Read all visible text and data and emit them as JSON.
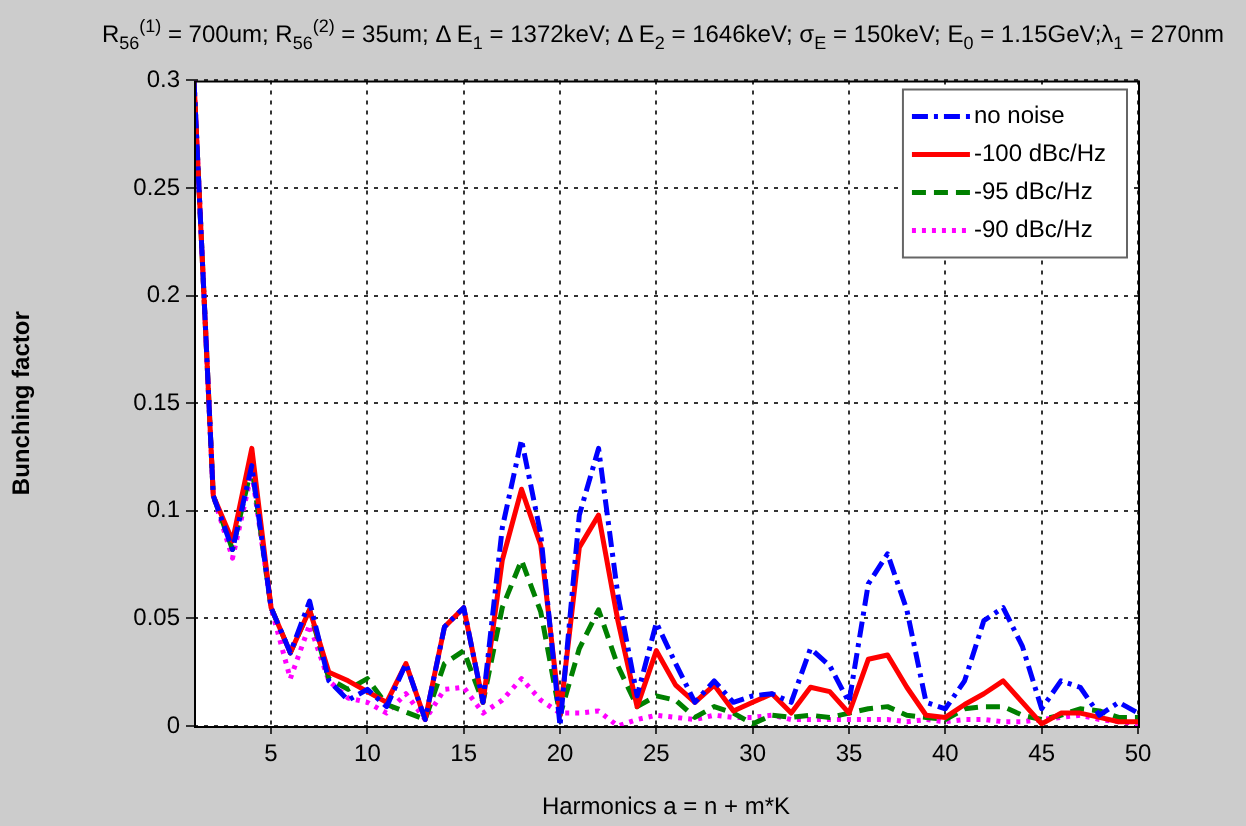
{
  "chart_data": {
    "type": "line",
    "title": "R$_{56}$$^{(1)}$ = 700um; R$_{56}$$^{(2)}$ = 35um; Δ E$_{1}$ = 1372keV; Δ E$_{2}$ = 1646keV; σ$_{E}$ = 150keV; E$_{0}$ = 1.15GeV;λ$_{1}$ = 270nm",
    "xlabel": "Harmonics a = n + m*K",
    "ylabel": "Bunching factor",
    "x": [
      1,
      2,
      3,
      4,
      5,
      6,
      7,
      8,
      9,
      10,
      11,
      12,
      13,
      14,
      15,
      16,
      17,
      18,
      19,
      20,
      21,
      22,
      23,
      24,
      25,
      26,
      27,
      28,
      29,
      30,
      31,
      32,
      33,
      34,
      35,
      36,
      37,
      38,
      39,
      40,
      41,
      42,
      43,
      44,
      45,
      46,
      47,
      48,
      49,
      50
    ],
    "series": [
      {
        "name": "no noise",
        "color": "#0000ff",
        "line_style": "dashdot",
        "values": [
          0.3,
          0.107,
          0.082,
          0.121,
          0.055,
          0.034,
          0.058,
          0.021,
          0.012,
          0.017,
          0.009,
          0.029,
          0.003,
          0.046,
          0.055,
          0.011,
          0.092,
          0.133,
          0.089,
          0.0,
          0.098,
          0.129,
          0.061,
          0.014,
          0.048,
          0.029,
          0.011,
          0.021,
          0.011,
          0.014,
          0.015,
          0.011,
          0.036,
          0.028,
          0.011,
          0.066,
          0.08,
          0.054,
          0.011,
          0.008,
          0.021,
          0.049,
          0.055,
          0.037,
          0.008,
          0.021,
          0.018,
          0.005,
          0.011,
          0.006
        ]
      },
      {
        "name": "-100 dBc/Hz",
        "color": "#ff0000",
        "line_style": "solid",
        "values": [
          0.3,
          0.107,
          0.086,
          0.129,
          0.055,
          0.034,
          0.054,
          0.025,
          0.021,
          0.016,
          0.011,
          0.029,
          0.003,
          0.046,
          0.055,
          0.011,
          0.077,
          0.11,
          0.084,
          0.005,
          0.083,
          0.098,
          0.049,
          0.009,
          0.035,
          0.019,
          0.011,
          0.019,
          0.007,
          0.011,
          0.015,
          0.006,
          0.018,
          0.016,
          0.006,
          0.031,
          0.033,
          0.018,
          0.005,
          0.004,
          0.01,
          0.015,
          0.021,
          0.011,
          0.001,
          0.006,
          0.006,
          0.004,
          0.002,
          0.002
        ]
      },
      {
        "name": "-95 dBc/Hz",
        "color": "#008000",
        "line_style": "dashed",
        "values": [
          0.3,
          0.107,
          0.082,
          0.121,
          0.055,
          0.034,
          0.054,
          0.022,
          0.017,
          0.022,
          0.01,
          null,
          0.003,
          0.029,
          0.035,
          0.011,
          0.055,
          0.077,
          0.053,
          0.005,
          0.036,
          0.054,
          0.028,
          0.009,
          0.014,
          0.012,
          0.004,
          0.009,
          0.006,
          0.001,
          0.005,
          0.004,
          0.005,
          0.004,
          0.006,
          0.008,
          0.009,
          0.005,
          0.004,
          0.003,
          0.008,
          0.009,
          0.009,
          0.005,
          0.003,
          0.005,
          0.008,
          0.007,
          0.004,
          0.004
        ]
      },
      {
        "name": "-90 dBc/Hz",
        "color": "#ff00ff",
        "line_style": "dotted",
        "values": [
          0.3,
          0.107,
          0.078,
          0.118,
          0.055,
          0.022,
          0.047,
          0.021,
          0.013,
          0.011,
          0.006,
          0.015,
          0.003,
          0.017,
          0.018,
          0.006,
          0.012,
          0.022,
          0.012,
          0.006,
          0.006,
          0.007,
          0.0,
          0.003,
          0.005,
          0.004,
          0.003,
          0.005,
          0.004,
          0.004,
          0.005,
          0.003,
          0.003,
          0.003,
          0.003,
          0.003,
          0.003,
          0.002,
          0.003,
          0.002,
          0.003,
          0.003,
          0.002,
          0.002,
          0.003,
          0.004,
          0.005,
          0.003,
          0.002,
          0.001
        ]
      }
    ],
    "xlim": [
      1,
      50
    ],
    "xticks": [
      5,
      10,
      15,
      20,
      25,
      30,
      35,
      40,
      45,
      50
    ],
    "ylim": [
      0,
      0.3
    ],
    "yticks": [
      0,
      0.05,
      0.1,
      0.15,
      0.2,
      0.25,
      0.3
    ],
    "grid": true,
    "legend": "top right"
  }
}
